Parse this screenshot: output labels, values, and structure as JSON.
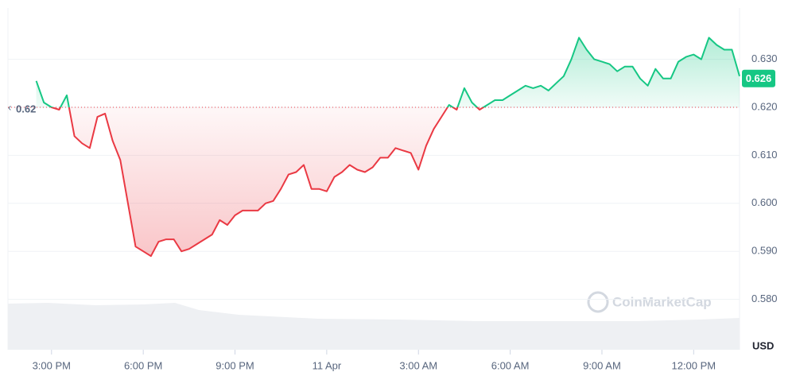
{
  "chart_data": {
    "type": "line",
    "baseline": 0.62,
    "baseline_label": "0.62",
    "current_price": 0.626,
    "current_price_label": "0.626",
    "currency": "USD",
    "watermark": "CoinMarketCap",
    "up_color": "#16c784",
    "down_color": "#ea3943",
    "xlim": [
      -3.7,
      92
    ],
    "xticks": [
      {
        "value": 2,
        "label": "3:00 PM"
      },
      {
        "value": 14,
        "label": "6:00 PM"
      },
      {
        "value": 26,
        "label": "9:00 PM"
      },
      {
        "value": 38,
        "label": "11 Apr"
      },
      {
        "value": 50,
        "label": "3:00 AM"
      },
      {
        "value": 62,
        "label": "6:00 AM"
      },
      {
        "value": 74,
        "label": "9:00 AM"
      },
      {
        "value": 86,
        "label": "12:00 PM"
      }
    ],
    "ylim": [
      0.5695,
      0.6407
    ],
    "yticks": [
      {
        "value": 0.58,
        "label": "0.580"
      },
      {
        "value": 0.59,
        "label": "0.590"
      },
      {
        "value": 0.6,
        "label": "0.600"
      },
      {
        "value": 0.61,
        "label": "0.610"
      },
      {
        "value": 0.62,
        "label": "0.620"
      },
      {
        "value": 0.63,
        "label": "0.630"
      }
    ],
    "grid": true,
    "values": [
      0.6255,
      0.621,
      0.62,
      0.6195,
      0.6225,
      0.614,
      0.6125,
      0.6115,
      0.618,
      0.6187,
      0.613,
      0.609,
      0.6,
      0.591,
      0.59,
      0.589,
      0.592,
      0.5925,
      0.5925,
      0.59,
      0.5905,
      0.5915,
      0.5925,
      0.5935,
      0.5965,
      0.5955,
      0.5975,
      0.5985,
      0.5985,
      0.5985,
      0.6,
      0.6005,
      0.603,
      0.606,
      0.6065,
      0.608,
      0.603,
      0.603,
      0.6025,
      0.6055,
      0.6065,
      0.608,
      0.607,
      0.6065,
      0.6075,
      0.6095,
      0.6095,
      0.6115,
      0.611,
      0.6105,
      0.607,
      0.612,
      0.6155,
      0.618,
      0.6205,
      0.6195,
      0.624,
      0.621,
      0.6195,
      0.6205,
      0.6215,
      0.6215,
      0.6225,
      0.6235,
      0.6245,
      0.624,
      0.6245,
      0.6235,
      0.625,
      0.6265,
      0.63,
      0.6345,
      0.632,
      0.63,
      0.6295,
      0.629,
      0.6275,
      0.6285,
      0.6285,
      0.626,
      0.6245,
      0.628,
      0.626,
      0.626,
      0.6295,
      0.6305,
      0.631,
      0.63,
      0.6345,
      0.633,
      0.632,
      0.632,
      0.6265
    ]
  }
}
